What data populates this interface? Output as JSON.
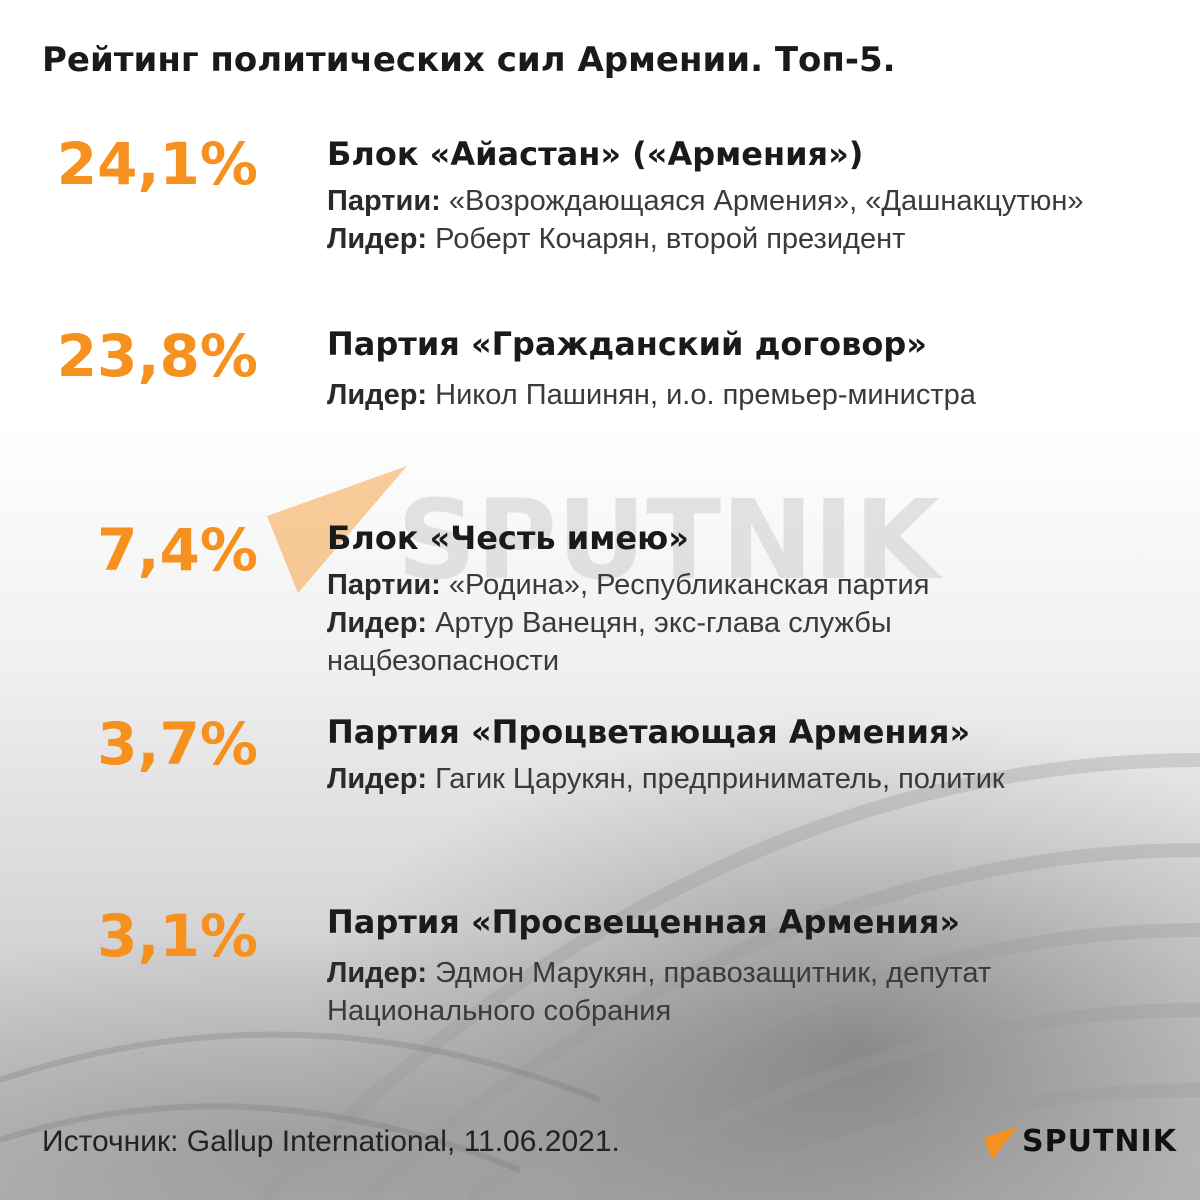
{
  "title": "Рейтинг политических сил Армении. Топ-5.",
  "chart_data": {
    "type": "table",
    "categories": [
      "Блок «Айастан» («Армения»)",
      "Партия «Гражданский договор»",
      "Блок «Честь имею»",
      "Партия «Процветающая Армения»",
      "Партия «Просвещенная Армения»"
    ],
    "values": [
      24.1,
      23.8,
      7.4,
      3.7,
      3.1
    ],
    "unit": "%",
    "accent_color": "#f6901e"
  },
  "entries": [
    {
      "percent": "24,1%",
      "name": "Блок «Айастан» («Армения»)",
      "parties_label": "Партии:",
      "parties": "«Возрождающаяся Армения», «Дашнакцутюн»",
      "leader_label": "Лидер:",
      "leader": "Роберт Кочарян, второй президент"
    },
    {
      "percent": "23,8%",
      "name": "Партия «Гражданский договор»",
      "leader_label": "Лидер:",
      "leader": "Никол Пашинян, и.о. премьер-министра"
    },
    {
      "percent": "7,4%",
      "name": "Блок «Честь имею»",
      "parties_label": "Партии:",
      "parties": "«Родина», Республиканская партия",
      "leader_label": "Лидер:",
      "leader": "Артур Ванецян, экс-глава службы нацбезопасности"
    },
    {
      "percent": "3,7%",
      "name": "Партия «Процветающая Армения»",
      "leader_label": "Лидер:",
      "leader": "Гагик Царукян, предприниматель, политик"
    },
    {
      "percent": "3,1%",
      "name": "Партия «Просвещенная Армения»",
      "leader_label": "Лидер:",
      "leader": "Эдмон Марукян, правозащитник, депутат Национального собрания"
    }
  ],
  "source": "Источник: Gallup International, 11.06.2021.",
  "watermark": {
    "text": "SPUTNIK",
    "icon": "sputnik-arrow-icon"
  },
  "brand": {
    "text": "SPUTNIK",
    "icon": "sputnik-arrow-icon",
    "color": "#f6901e"
  }
}
